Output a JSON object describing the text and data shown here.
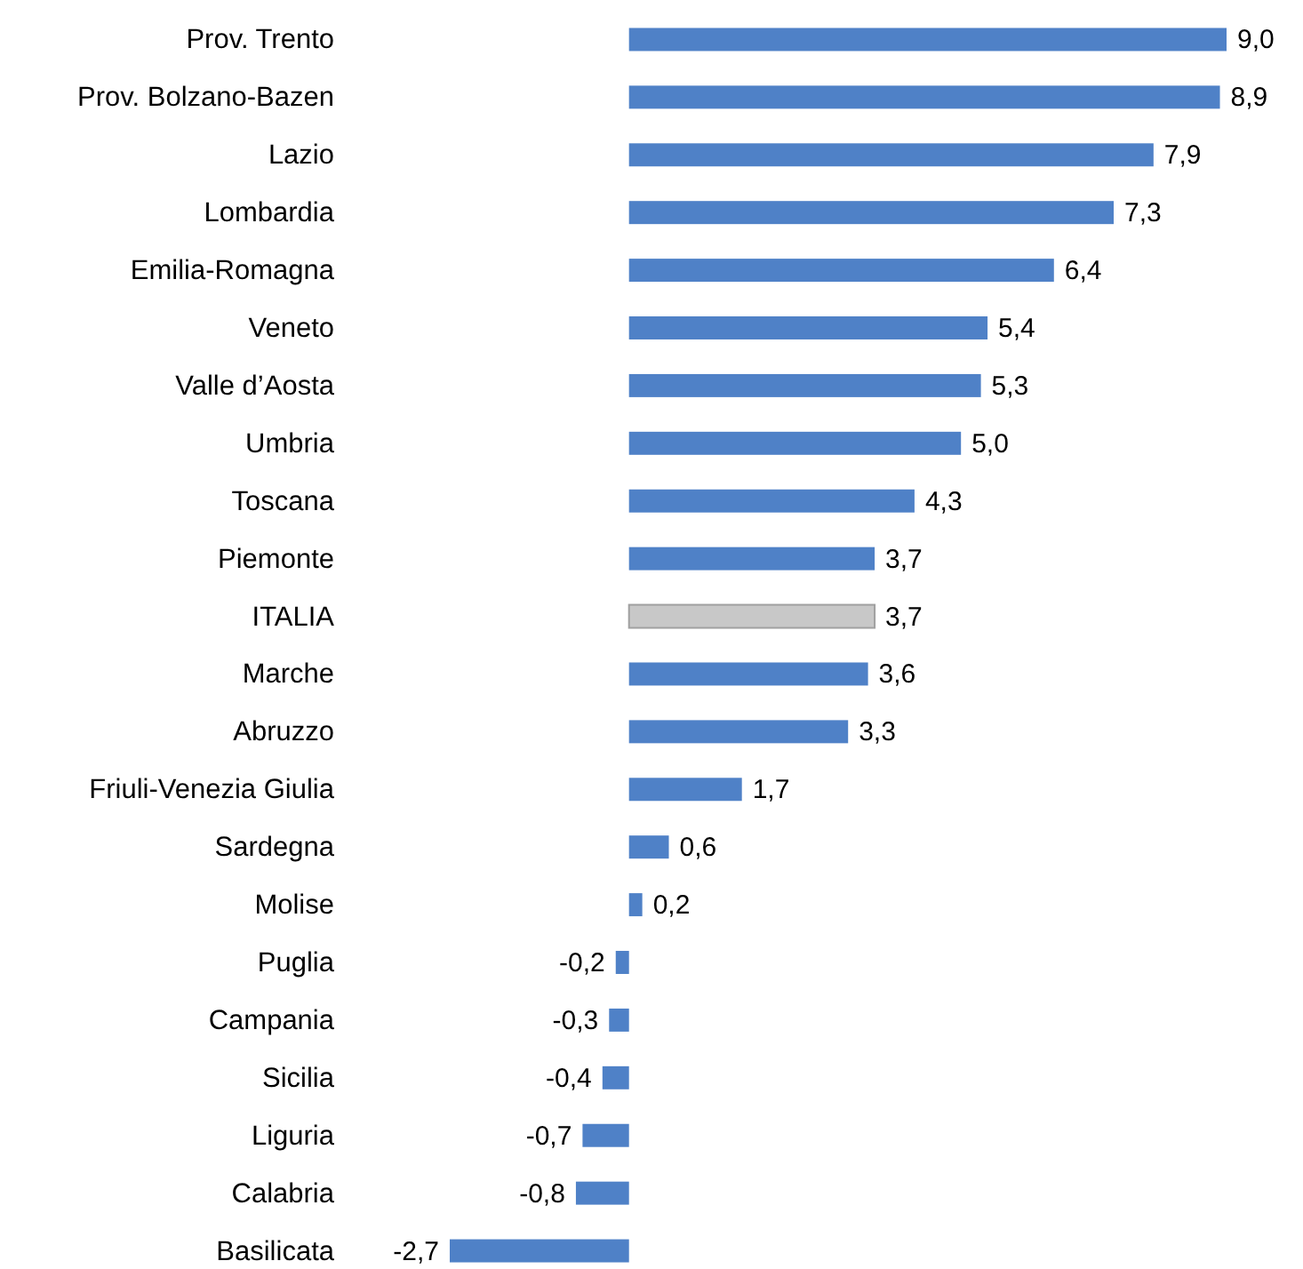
{
  "chart_data": {
    "type": "bar",
    "orientation": "horizontal",
    "value_labels": [
      "9,0",
      "8,9",
      "7,9",
      "7,3",
      "6,4",
      "5,4",
      "5,3",
      "5,0",
      "4,3",
      "3,7",
      "3,7",
      "3,6",
      "3,3",
      "1,7",
      "0,6",
      "0,2",
      "-0,2",
      "-0,3",
      "-0,4",
      "-0,7",
      "-0,8",
      "-2,7"
    ],
    "categories": [
      "Prov. Trento",
      "Prov. Bolzano-Bazen",
      "Lazio",
      "Lombardia",
      "Emilia-Romagna",
      "Veneto",
      "Valle d’Aosta",
      "Umbria",
      "Toscana",
      "Piemonte",
      "ITALIA",
      "Marche",
      "Abruzzo",
      "Friuli-Venezia Giulia",
      "Sardegna",
      "Molise",
      "Puglia",
      "Campania",
      "Sicilia",
      "Liguria",
      "Calabria",
      "Basilicata"
    ],
    "values": [
      9.0,
      8.9,
      7.9,
      7.3,
      6.4,
      5.4,
      5.3,
      5.0,
      4.3,
      3.7,
      3.7,
      3.6,
      3.3,
      1.7,
      0.6,
      0.2,
      -0.2,
      -0.3,
      -0.4,
      -0.7,
      -0.8,
      -2.7
    ],
    "colors": [
      "#4f81c7",
      "#4f81c7",
      "#4f81c7",
      "#4f81c7",
      "#4f81c7",
      "#4f81c7",
      "#4f81c7",
      "#4f81c7",
      "#4f81c7",
      "#4f81c7",
      "#c8c8c8",
      "#4f81c7",
      "#4f81c7",
      "#4f81c7",
      "#4f81c7",
      "#4f81c7",
      "#4f81c7",
      "#4f81c7",
      "#4f81c7",
      "#4f81c7",
      "#4f81c7",
      "#4f81c7"
    ]
  }
}
